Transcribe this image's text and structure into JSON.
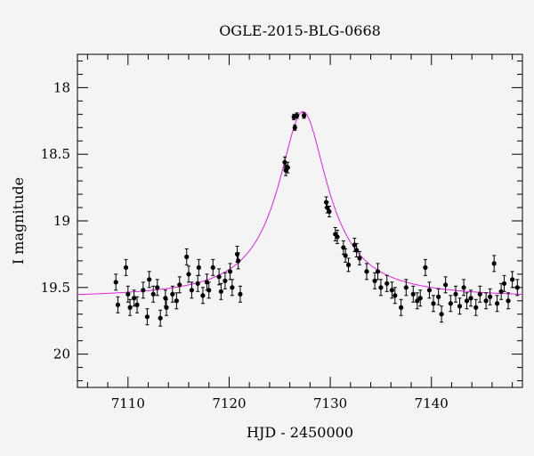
{
  "chart_data": {
    "type": "scatter",
    "title": "OGLE-2015-BLG-0668",
    "xlabel": "HJD - 2450000",
    "ylabel": "I magnitude",
    "xlim": [
      7105,
      7149
    ],
    "ylim": [
      17.75,
      20.25
    ],
    "y_inverted": true,
    "x_ticks": [
      7110,
      7120,
      7130,
      7140
    ],
    "y_ticks": [
      18,
      18.5,
      19,
      19.5,
      20
    ],
    "y_tick_labels": [
      "18",
      "18.5",
      "19",
      "19.5",
      "20"
    ],
    "grid": false,
    "legend": "none",
    "model": {
      "name": "",
      "color": "#e61ee6",
      "baseline_mag": 19.58,
      "peak_mag": 18.18,
      "t0": 7127.3,
      "tE": 2.2
    },
    "series": [
      {
        "name": "",
        "color": "#000000",
        "x": [
          7108.8,
          7109.0,
          7109.8,
          7110.0,
          7110.2,
          7110.6,
          7110.9,
          7111.5,
          7111.9,
          7112.1,
          7112.5,
          7112.9,
          7113.2,
          7113.7,
          7113.8,
          7114.4,
          7114.8,
          7115.1,
          7115.8,
          7116.0,
          7116.3,
          7116.9,
          7117.0,
          7117.4,
          7117.8,
          7118.0,
          7118.4,
          7119.0,
          7119.2,
          7119.6,
          7120.1,
          7120.3,
          7120.8,
          7120.9,
          7121.1,
          7125.5,
          7125.6,
          7125.8,
          7126.4,
          7126.5,
          7126.7,
          7127.4,
          7129.6,
          7129.7,
          7129.9,
          7130.5,
          7130.7,
          7131.3,
          7131.5,
          7131.8,
          7132.4,
          7132.6,
          7132.9,
          7133.6,
          7134.4,
          7134.7,
          7135.0,
          7135.6,
          7136.1,
          7136.4,
          7137.0,
          7137.5,
          7138.2,
          7138.6,
          7138.9,
          7139.4,
          7139.8,
          7140.2,
          7140.7,
          7141.0,
          7141.4,
          7141.9,
          7142.4,
          7142.8,
          7143.2,
          7143.5,
          7143.9,
          7144.4,
          7144.8,
          7145.4,
          7145.8,
          7146.2,
          7146.5,
          7146.9,
          7147.2,
          7147.6,
          7148.0,
          7148.5
        ],
        "y": [
          19.46,
          19.63,
          19.35,
          19.55,
          19.65,
          19.58,
          19.63,
          19.52,
          19.72,
          19.44,
          19.55,
          19.5,
          19.73,
          19.58,
          19.65,
          19.55,
          19.6,
          19.48,
          19.27,
          19.4,
          19.52,
          19.47,
          19.35,
          19.56,
          19.46,
          19.52,
          19.35,
          19.42,
          19.53,
          19.45,
          19.38,
          19.5,
          19.25,
          19.3,
          19.55,
          18.56,
          18.62,
          18.6,
          18.22,
          18.3,
          18.21,
          18.21,
          18.86,
          18.9,
          18.93,
          19.1,
          19.12,
          19.2,
          19.26,
          19.33,
          19.18,
          19.22,
          19.28,
          19.38,
          19.45,
          19.38,
          19.5,
          19.47,
          19.52,
          19.56,
          19.65,
          19.5,
          19.55,
          19.6,
          19.58,
          19.35,
          19.52,
          19.62,
          19.57,
          19.7,
          19.48,
          19.62,
          19.55,
          19.64,
          19.5,
          19.6,
          19.58,
          19.65,
          19.55,
          19.6,
          19.57,
          19.32,
          19.62,
          19.53,
          19.47,
          19.6,
          19.44,
          19.5
        ],
        "err": [
          0.06,
          0.06,
          0.06,
          0.06,
          0.06,
          0.06,
          0.06,
          0.06,
          0.06,
          0.06,
          0.06,
          0.06,
          0.06,
          0.06,
          0.06,
          0.06,
          0.06,
          0.06,
          0.06,
          0.06,
          0.06,
          0.06,
          0.06,
          0.06,
          0.06,
          0.06,
          0.06,
          0.06,
          0.06,
          0.06,
          0.06,
          0.06,
          0.06,
          0.06,
          0.06,
          0.04,
          0.04,
          0.04,
          0.02,
          0.02,
          0.02,
          0.02,
          0.04,
          0.04,
          0.04,
          0.05,
          0.05,
          0.05,
          0.05,
          0.05,
          0.05,
          0.05,
          0.05,
          0.06,
          0.06,
          0.06,
          0.06,
          0.06,
          0.06,
          0.06,
          0.06,
          0.06,
          0.06,
          0.06,
          0.06,
          0.06,
          0.06,
          0.06,
          0.06,
          0.06,
          0.06,
          0.06,
          0.06,
          0.06,
          0.06,
          0.06,
          0.06,
          0.06,
          0.06,
          0.06,
          0.06,
          0.06,
          0.06,
          0.06,
          0.06,
          0.06,
          0.06,
          0.06
        ]
      }
    ]
  }
}
